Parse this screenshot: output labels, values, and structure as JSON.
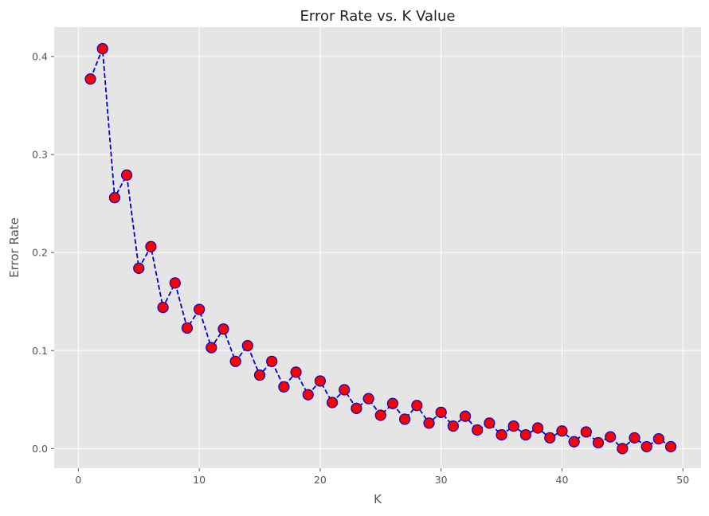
{
  "chart_data": {
    "type": "line",
    "title": "Error Rate vs. K Value",
    "xlabel": "K",
    "ylabel": "Error Rate",
    "xlim": [
      -2,
      51.5
    ],
    "ylim": [
      -0.02,
      0.43
    ],
    "xticks": [
      0,
      10,
      20,
      30,
      40,
      50
    ],
    "yticks": [
      0.0,
      0.1,
      0.2,
      0.3,
      0.4
    ],
    "xtick_labels": [
      "0",
      "10",
      "20",
      "30",
      "40",
      "50"
    ],
    "ytick_labels": [
      "0.0",
      "0.1",
      "0.2",
      "0.3",
      "0.4"
    ],
    "grid": true,
    "style": "ggplot",
    "line_color": "#0000cc",
    "line_style": "dashed",
    "marker_face_color": "#ff0000",
    "marker_edge_color": "#0000cc",
    "x": [
      1,
      2,
      3,
      4,
      5,
      6,
      7,
      8,
      9,
      10,
      11,
      12,
      13,
      14,
      15,
      16,
      17,
      18,
      19,
      20,
      21,
      22,
      23,
      24,
      25,
      26,
      27,
      28,
      29,
      30,
      31,
      32,
      33,
      34,
      35,
      36,
      37,
      38,
      39,
      40,
      41,
      42,
      43,
      44,
      45,
      46,
      47,
      48,
      49
    ],
    "series": [
      {
        "values": [
          0.377,
          0.408,
          0.256,
          0.279,
          0.184,
          0.206,
          0.144,
          0.169,
          0.123,
          0.142,
          0.103,
          0.122,
          0.089,
          0.105,
          0.075,
          0.089,
          0.063,
          0.078,
          0.055,
          0.069,
          0.047,
          0.06,
          0.041,
          0.051,
          0.034,
          0.046,
          0.03,
          0.044,
          0.026,
          0.037,
          0.023,
          0.033,
          0.019,
          0.026,
          0.014,
          0.023,
          0.014,
          0.021,
          0.011,
          0.018,
          0.007,
          0.017,
          0.006,
          0.012,
          0.0,
          0.011,
          0.002,
          0.01,
          0.002
        ]
      }
    ]
  }
}
